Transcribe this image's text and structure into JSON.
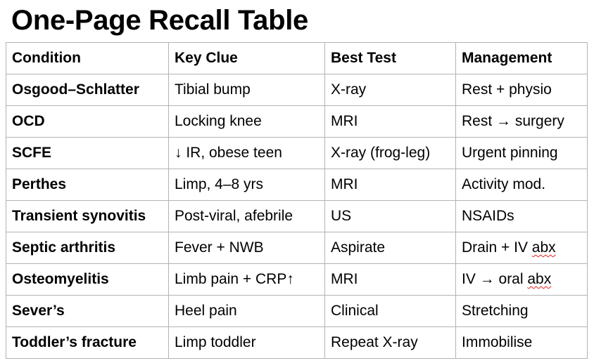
{
  "title": "One-Page Recall Table",
  "table": {
    "headers": [
      "Condition",
      "Key Clue",
      "Best Test",
      "Management"
    ],
    "rows": [
      {
        "condition": "Osgood–Schlatter",
        "key_clue": "Tibial bump",
        "best_test": "X-ray",
        "management": "Rest + physio"
      },
      {
        "condition": "OCD",
        "key_clue": "Locking knee",
        "best_test": "MRI",
        "management": "Rest → surgery"
      },
      {
        "condition": "SCFE",
        "key_clue": "↓ IR, obese teen",
        "best_test": "X-ray (frog-leg)",
        "management": "Urgent pinning"
      },
      {
        "condition": "Perthes",
        "key_clue": "Limp, 4–8 yrs",
        "best_test": "MRI",
        "management": "Activity mod."
      },
      {
        "condition": "Transient synovitis",
        "key_clue": "Post-viral, afebrile",
        "best_test": "US",
        "management": "NSAIDs"
      },
      {
        "condition": "Septic arthritis",
        "key_clue": "Fever + NWB",
        "best_test": "Aspirate",
        "management_pre": "Drain + IV ",
        "management_flagged": "abx"
      },
      {
        "condition": "Osteomyelitis",
        "key_clue": "Limb pain + CRP↑",
        "best_test": "MRI",
        "management_pre": "IV → oral ",
        "management_flagged": "abx"
      },
      {
        "condition": "Sever’s",
        "key_clue": "Heel pain",
        "best_test": "Clinical",
        "management": "Stretching"
      },
      {
        "condition": "Toddler’s fracture",
        "key_clue": "Limp toddler",
        "best_test": "Repeat X-ray",
        "management": "Immobilise"
      }
    ]
  },
  "colors": {
    "text": "#000000",
    "grid": "#b3b3b3",
    "spellcheck_underline": "#e02020"
  }
}
